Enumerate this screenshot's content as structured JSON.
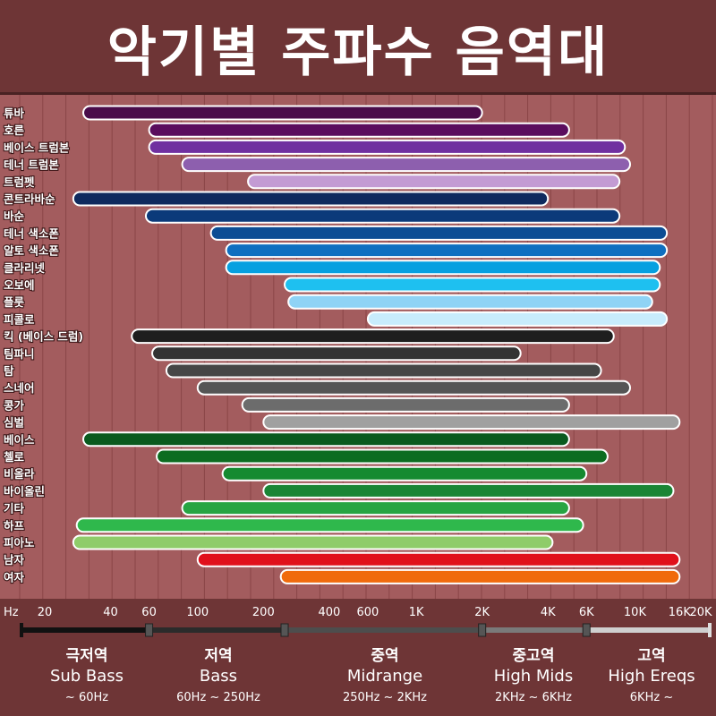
{
  "header": {
    "title": "악기별 주파수 음역대"
  },
  "chart_data": {
    "type": "bar",
    "orientation": "horizontal-range",
    "x_scale": "log",
    "xlim": [
      20,
      20000
    ],
    "x_unit_label": "Hz",
    "x_ticks": [
      {
        "value": 20,
        "label": "20"
      },
      {
        "value": 40,
        "label": "40"
      },
      {
        "value": 60,
        "label": "60"
      },
      {
        "value": 100,
        "label": "100"
      },
      {
        "value": 200,
        "label": "200"
      },
      {
        "value": 400,
        "label": "400"
      },
      {
        "value": 600,
        "label": "600"
      },
      {
        "value": 1000,
        "label": "1K"
      },
      {
        "value": 2000,
        "label": "2K"
      },
      {
        "value": 4000,
        "label": "4K"
      },
      {
        "value": 6000,
        "label": "6K"
      },
      {
        "value": 10000,
        "label": "10K"
      },
      {
        "value": 16000,
        "label": "16K"
      },
      {
        "value": 20000,
        "label": "20K"
      }
    ],
    "instruments": [
      {
        "name": "튜바",
        "low": 30,
        "high": 2000,
        "color": "#4a0c4a"
      },
      {
        "name": "호른",
        "low": 60,
        "high": 5000,
        "color": "#5a0d5e"
      },
      {
        "name": "베이스 트럼본",
        "low": 60,
        "high": 9000,
        "color": "#7030a0"
      },
      {
        "name": "테너 트럼본",
        "low": 85,
        "high": 9500,
        "color": "#8d5fae"
      },
      {
        "name": "트럼펫",
        "low": 170,
        "high": 8500,
        "color": "#c39bd3"
      },
      {
        "name": "콘트라바순",
        "low": 27,
        "high": 4000,
        "color": "#0f2a5e"
      },
      {
        "name": "바순",
        "low": 58,
        "high": 8500,
        "color": "#0b3a7a"
      },
      {
        "name": "테너 색소폰",
        "low": 115,
        "high": 14000,
        "color": "#0c4d94"
      },
      {
        "name": "알토 색소폰",
        "low": 135,
        "high": 14000,
        "color": "#0f6fc0"
      },
      {
        "name": "클라리넷",
        "low": 135,
        "high": 13000,
        "color": "#06a0e0"
      },
      {
        "name": "오보에",
        "low": 250,
        "high": 13000,
        "color": "#1ec0f0"
      },
      {
        "name": "플룻",
        "low": 260,
        "high": 12000,
        "color": "#8fd3f5"
      },
      {
        "name": "피콜로",
        "low": 600,
        "high": 14000,
        "color": "#c8ecfc"
      },
      {
        "name": "킥 (베이스 드럼)",
        "low": 50,
        "high": 8000,
        "color": "#1e1e1e"
      },
      {
        "name": "팀파니",
        "low": 62,
        "high": 3000,
        "color": "#333333"
      },
      {
        "name": "탐",
        "low": 72,
        "high": 7000,
        "color": "#464646"
      },
      {
        "name": "스네어",
        "low": 100,
        "high": 9500,
        "color": "#555555"
      },
      {
        "name": "콩가",
        "low": 160,
        "high": 5000,
        "color": "#6c6c6c"
      },
      {
        "name": "심벌",
        "low": 200,
        "high": 16000,
        "color": "#a0a0a0"
      },
      {
        "name": "베이스",
        "low": 30,
        "high": 5000,
        "color": "#0a5a1e"
      },
      {
        "name": "첼로",
        "low": 65,
        "high": 7500,
        "color": "#0c6c20"
      },
      {
        "name": "비올라",
        "low": 130,
        "high": 6000,
        "color": "#158a30"
      },
      {
        "name": "바이올린",
        "low": 200,
        "high": 15000,
        "color": "#1a8535"
      },
      {
        "name": "기타",
        "low": 85,
        "high": 5000,
        "color": "#27a543"
      },
      {
        "name": "하프",
        "low": 28,
        "high": 5800,
        "color": "#2fb84c"
      },
      {
        "name": "피아노",
        "low": 27,
        "high": 4200,
        "color": "#8fcc6a"
      },
      {
        "name": "남자",
        "low": 100,
        "high": 16000,
        "color": "#e0101b"
      },
      {
        "name": "여자",
        "low": 240,
        "high": 16000,
        "color": "#f06a0c"
      }
    ],
    "bands": [
      {
        "name": "극저역",
        "en": "Sub Bass",
        "range": "~ 60Hz",
        "low": 20,
        "high": 60,
        "color": "#111111"
      },
      {
        "name": "저역",
        "en": "Bass",
        "range": "60Hz ~ 250Hz",
        "low": 60,
        "high": 250,
        "color": "#2b2b2b"
      },
      {
        "name": "중역",
        "en": "Midrange",
        "range": "250Hz ~ 2KHz",
        "low": 250,
        "high": 2000,
        "color": "#4d4d4d"
      },
      {
        "name": "중고역",
        "en": "High Mids",
        "range": "2KHz ~ 6KHz",
        "low": 2000,
        "high": 6000,
        "color": "#7a7a7a"
      },
      {
        "name": "고역",
        "en": "High Ereqs",
        "range": "6KHz ~",
        "low": 6000,
        "high": 20000,
        "color": "#cfcfcf"
      }
    ]
  }
}
